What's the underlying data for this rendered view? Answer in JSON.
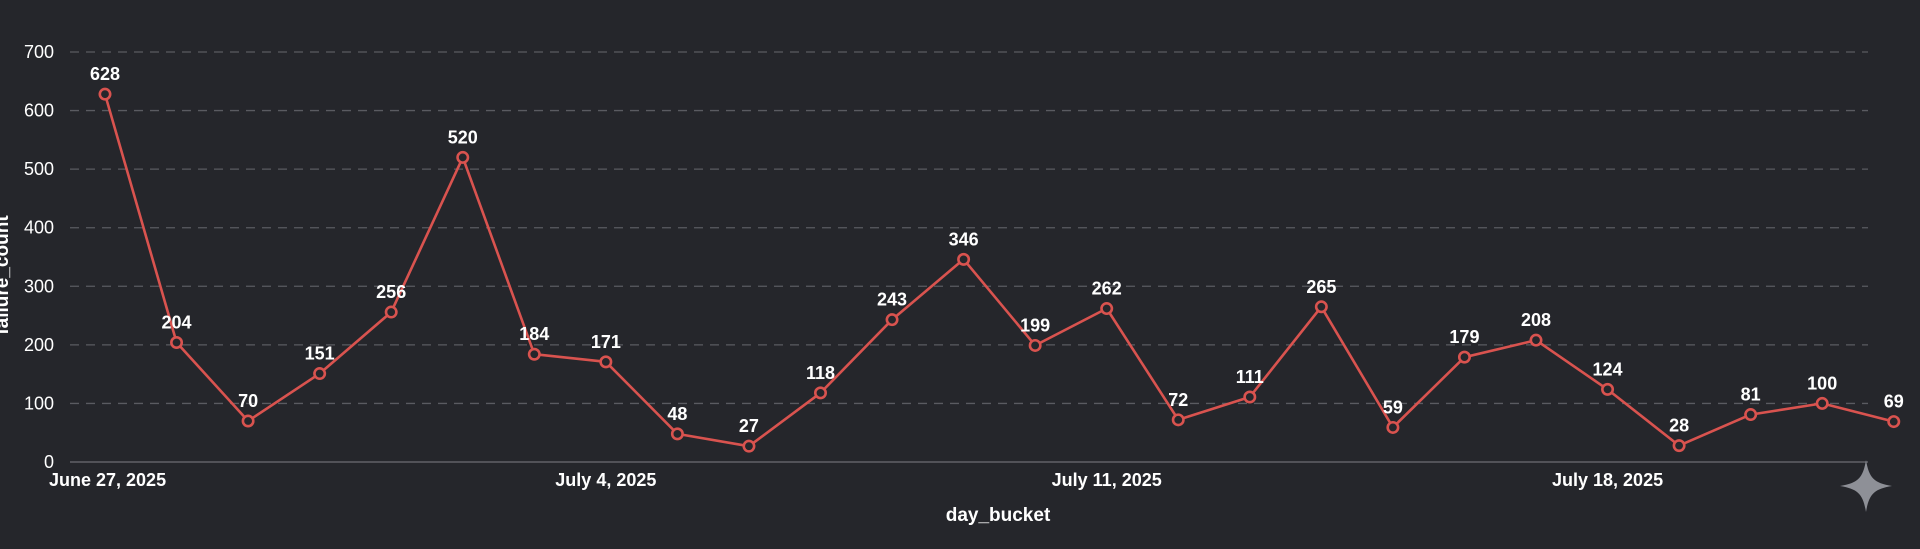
{
  "chart_data": {
    "type": "line",
    "xlabel": "day_bucket",
    "ylabel": "failure_count",
    "ylim": [
      0,
      700
    ],
    "y_ticks": [
      0,
      100,
      200,
      300,
      400,
      500,
      600,
      700
    ],
    "x_tick_labels": [
      {
        "date": "2025-06-27",
        "label": "June 27, 2025"
      },
      {
        "date": "2025-07-04",
        "label": "July 4, 2025"
      },
      {
        "date": "2025-07-11",
        "label": "July 11, 2025"
      },
      {
        "date": "2025-07-18",
        "label": "July 18, 2025"
      }
    ],
    "x": [
      "2025-06-27",
      "2025-06-28",
      "2025-06-29",
      "2025-06-30",
      "2025-07-01",
      "2025-07-02",
      "2025-07-03",
      "2025-07-04",
      "2025-07-05",
      "2025-07-06",
      "2025-07-07",
      "2025-07-08",
      "2025-07-09",
      "2025-07-10",
      "2025-07-11",
      "2025-07-12",
      "2025-07-13",
      "2025-07-14",
      "2025-07-15",
      "2025-07-16",
      "2025-07-17",
      "2025-07-18",
      "2025-07-19",
      "2025-07-20",
      "2025-07-21",
      "2025-07-22"
    ],
    "series": [
      {
        "color": "#d9534f",
        "values": [
          628,
          204,
          70,
          151,
          256,
          520,
          184,
          171,
          48,
          27,
          118,
          243,
          346,
          199,
          262,
          72,
          111,
          265,
          59,
          179,
          208,
          124,
          28,
          81,
          100,
          69
        ]
      }
    ],
    "grid": true,
    "grid_style": "dashed-horizontal",
    "data_labels": true,
    "background": "#25262b"
  },
  "watermark": {
    "icon": "sparkle-icon",
    "color": "#8e9097"
  }
}
